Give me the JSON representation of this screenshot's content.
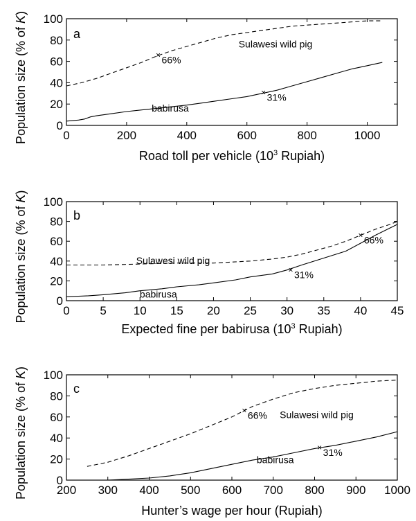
{
  "chart_data": [
    {
      "type": "line",
      "panel_label": "a",
      "xlabel": "Road toll per vehicle (10",
      "xlabel_sup": "3",
      "xlabel_end": " Rupiah)",
      "ylabel": "Population size (% of ",
      "ylabel_italic": "K",
      "ylabel_end": ")",
      "xlim": [
        0,
        1100
      ],
      "ylim": [
        0,
        100
      ],
      "xticks": [
        0,
        200,
        400,
        600,
        800,
        1000
      ],
      "yticks": [
        0,
        20,
        40,
        60,
        80,
        100
      ],
      "grid": false,
      "series": [
        {
          "name": "Sulawesi wild pig",
          "style": "dashed",
          "x": [
            0,
            50,
            100,
            150,
            200,
            250,
            300,
            350,
            400,
            450,
            500,
            550,
            600,
            650,
            700,
            750,
            800,
            850,
            900,
            950,
            1000,
            1050
          ],
          "y": [
            37,
            40,
            44,
            49,
            54,
            59,
            65,
            70,
            74,
            78,
            82,
            85,
            87,
            89,
            91,
            93,
            94,
            95,
            96,
            97,
            98,
            98
          ]
        },
        {
          "name": "babirusa",
          "style": "solid",
          "x": [
            0,
            40,
            60,
            80,
            100,
            150,
            200,
            250,
            300,
            350,
            400,
            450,
            500,
            550,
            600,
            650,
            700,
            750,
            800,
            850,
            900,
            950,
            1000,
            1050
          ],
          "y": [
            4,
            5,
            6,
            8,
            9,
            11,
            13,
            14.5,
            16,
            17.5,
            19,
            21,
            23,
            25,
            27,
            30,
            33,
            37,
            41,
            45,
            49,
            53,
            56,
            59
          ]
        }
      ],
      "annotations": [
        {
          "text": "66%",
          "x": 305,
          "y": 66
        },
        {
          "text": "31%",
          "x": 655,
          "y": 31
        }
      ],
      "series_labels": [
        {
          "text": "Sulawesi wild pig",
          "x": 695,
          "y": 73
        },
        {
          "text": "babirusa",
          "x": 345,
          "y": 13
        }
      ]
    },
    {
      "type": "line",
      "panel_label": "b",
      "xlabel": "Expected fine per babirusa (10",
      "xlabel_sup": "3",
      "xlabel_end": " Rupiah)",
      "ylabel": "Population size (% of ",
      "ylabel_italic": "K",
      "ylabel_end": ")",
      "xlim": [
        0,
        45
      ],
      "ylim": [
        0,
        100
      ],
      "xticks": [
        0,
        5,
        10,
        15,
        20,
        25,
        30,
        35,
        40,
        45
      ],
      "yticks": [
        0,
        20,
        40,
        60,
        80,
        100
      ],
      "grid": false,
      "series": [
        {
          "name": "Sulawesi wild pig",
          "style": "dashed",
          "x": [
            0,
            5,
            10,
            15,
            20,
            25,
            28,
            30,
            32,
            34,
            36,
            38,
            40,
            42,
            44,
            45
          ],
          "y": [
            36,
            36,
            37,
            38,
            38,
            40,
            42,
            44,
            47,
            51,
            55,
            60,
            66,
            72,
            77,
            80
          ]
        },
        {
          "name": "babirusa",
          "style": "solid",
          "x": [
            0,
            3,
            5,
            8,
            10,
            13,
            15,
            18,
            20,
            23,
            25,
            28,
            30,
            32,
            35,
            38,
            40,
            42,
            45
          ],
          "y": [
            4,
            5,
            6,
            8,
            10,
            12,
            14,
            16,
            18,
            21,
            24,
            27,
            31,
            36,
            43,
            50,
            58,
            66,
            77
          ]
        }
      ],
      "annotations": [
        {
          "text": "66%",
          "x": 40,
          "y": 66
        },
        {
          "text": "31%",
          "x": 30.5,
          "y": 31
        }
      ],
      "series_labels": [
        {
          "text": "Sulawesi wild pig",
          "x": 14.5,
          "y": 37
        },
        {
          "text": "babirusa",
          "x": 12.5,
          "y": 3
        }
      ]
    },
    {
      "type": "line",
      "panel_label": "c",
      "xlabel": "Hunter’s wage per hour (Rupiah)",
      "xlabel_sup": "",
      "xlabel_end": "",
      "ylabel": "Population size (% of ",
      "ylabel_italic": "K",
      "ylabel_end": ")",
      "xlim": [
        200,
        1000
      ],
      "ylim": [
        0,
        100
      ],
      "xticks": [
        200,
        300,
        400,
        500,
        600,
        700,
        800,
        900,
        1000
      ],
      "yticks": [
        0,
        20,
        40,
        60,
        80,
        100
      ],
      "grid": false,
      "series": [
        {
          "name": "Sulawesi wild pig",
          "style": "dashed",
          "x": [
            250,
            300,
            350,
            400,
            450,
            500,
            550,
            600,
            630,
            650,
            700,
            750,
            800,
            850,
            900,
            950,
            1000
          ],
          "y": [
            13,
            17,
            23,
            30,
            37,
            44,
            52,
            60,
            66,
            70,
            77,
            83,
            87,
            90,
            92,
            94,
            95
          ]
        },
        {
          "name": "babirusa",
          "style": "solid",
          "x": [
            250,
            300,
            350,
            400,
            450,
            500,
            550,
            600,
            650,
            700,
            750,
            800,
            850,
            900,
            950,
            1000
          ],
          "y": [
            0,
            0,
            1,
            2,
            4,
            7,
            11,
            15,
            19,
            22,
            26,
            30,
            33,
            37,
            41,
            46
          ]
        }
      ],
      "annotations": [
        {
          "text": "66%",
          "x": 630,
          "y": 66
        },
        {
          "text": "31%",
          "x": 812,
          "y": 31
        }
      ],
      "series_labels": [
        {
          "text": "Sulawesi wild pig",
          "x": 805,
          "y": 59
        },
        {
          "text": "babirusa",
          "x": 705,
          "y": 16
        }
      ]
    }
  ]
}
